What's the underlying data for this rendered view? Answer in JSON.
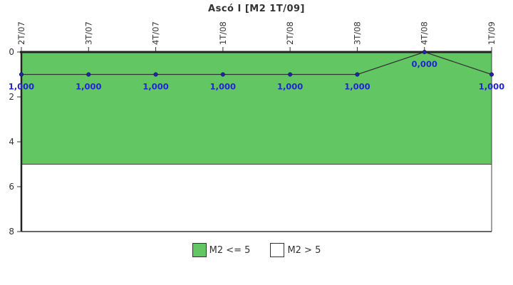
{
  "title": "Ascó I [M2 1T/09]",
  "chart_data": {
    "type": "line",
    "categories": [
      "2T/07",
      "3T/07",
      "4T/07",
      "1T/08",
      "2T/08",
      "3T/08",
      "4T/08",
      "1T/09"
    ],
    "series": [
      {
        "name": "M2",
        "values": [
          1,
          1,
          1,
          1,
          1,
          1,
          0,
          1
        ]
      }
    ],
    "point_labels": [
      "1,000",
      "1,000",
      "1,000",
      "1,000",
      "1,000",
      "1,000",
      "0,000",
      "1,000"
    ],
    "title": "Ascó I [M2 1T/09]",
    "xlabel": "",
    "ylabel": "",
    "ylim": [
      0,
      8
    ],
    "y_inverted": true,
    "yticks": [
      0,
      2,
      4,
      6,
      8
    ],
    "grid": false,
    "legend_position": "bottom",
    "bands": [
      {
        "label": "M2 <= 5",
        "from": 0,
        "to": 5,
        "color": "#62C763"
      },
      {
        "label": "M2 > 5",
        "from": 5,
        "to": 8,
        "color": "#FFFFFF"
      }
    ],
    "legend": [
      {
        "label": "M2 <= 5",
        "color": "#62C763"
      },
      {
        "label": "M2 > 5",
        "color": "#FFFFFF"
      }
    ]
  },
  "colors": {
    "band_green": "#62C763",
    "band_white": "#FFFFFF",
    "line": "#333333",
    "marker": "#2222AA",
    "point_label": "#2224CC",
    "axis": "#222222",
    "axis_text": "#333333"
  }
}
